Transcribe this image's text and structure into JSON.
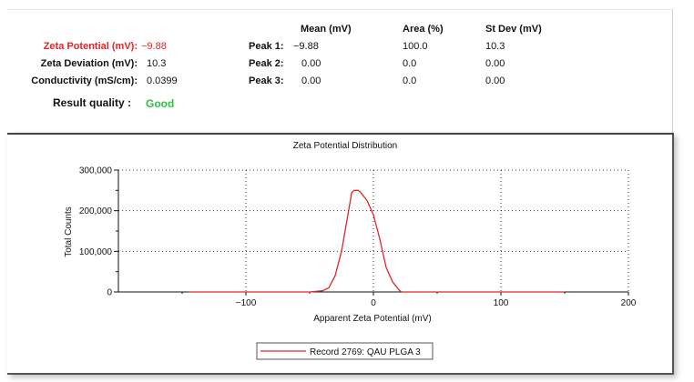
{
  "summary": {
    "zeta_potential_label": "Zeta Potential (mV):",
    "zeta_potential_value": "−9.88",
    "zeta_deviation_label": "Zeta Deviation (mV):",
    "zeta_deviation_value": "10.3",
    "conductivity_label": "Conductivity (mS/cm):",
    "conductivity_value": "0.0399",
    "result_quality_label": "Result quality :",
    "result_quality_value": "Good"
  },
  "peaks": {
    "headers": [
      "Mean (mV)",
      "Area (%)",
      "St Dev (mV)"
    ],
    "rows": [
      {
        "label": "Peak 1:",
        "mean": "−9.88",
        "area": "100.0",
        "stdev": "10.3"
      },
      {
        "label": "Peak 2:",
        "mean": "0.00",
        "area": "0.0",
        "stdev": "0.00"
      },
      {
        "label": "Peak 3:",
        "mean": "0.00",
        "area": "0.0",
        "stdev": "0.00"
      }
    ]
  },
  "colors": {
    "highlight": "#e0262a",
    "good": "#2fbf4a",
    "series": "#e0262a"
  },
  "chart_data": {
    "type": "line",
    "title": "Zeta Potential Distribution",
    "xlabel": "Apparent Zeta Potential (mV)",
    "ylabel": "Total Counts",
    "xlim": [
      -200,
      200
    ],
    "ylim": [
      0,
      300000
    ],
    "x_ticks": [
      -100,
      0,
      100,
      200
    ],
    "x_tick_labels": [
      "−100",
      "0",
      "100",
      "200"
    ],
    "y_ticks": [
      0,
      100000,
      200000,
      300000
    ],
    "y_tick_labels": [
      "0",
      "100,000",
      "200,000",
      "300,000"
    ],
    "grid": true,
    "legend_position": "bottom-center",
    "series": [
      {
        "name": "Record 2769: QAU PLGA 3",
        "x": [
          -145,
          -50,
          -40,
          -35,
          -30,
          -25,
          -20,
          -17,
          -15,
          -12,
          -10,
          -5,
          0,
          5,
          10,
          15,
          20,
          22,
          25,
          50,
          150
        ],
        "y": [
          0,
          0,
          3000,
          10000,
          40000,
          100000,
          190000,
          245000,
          250000,
          250000,
          245000,
          225000,
          190000,
          130000,
          60000,
          25000,
          5000,
          0,
          0,
          0,
          0
        ]
      }
    ]
  }
}
